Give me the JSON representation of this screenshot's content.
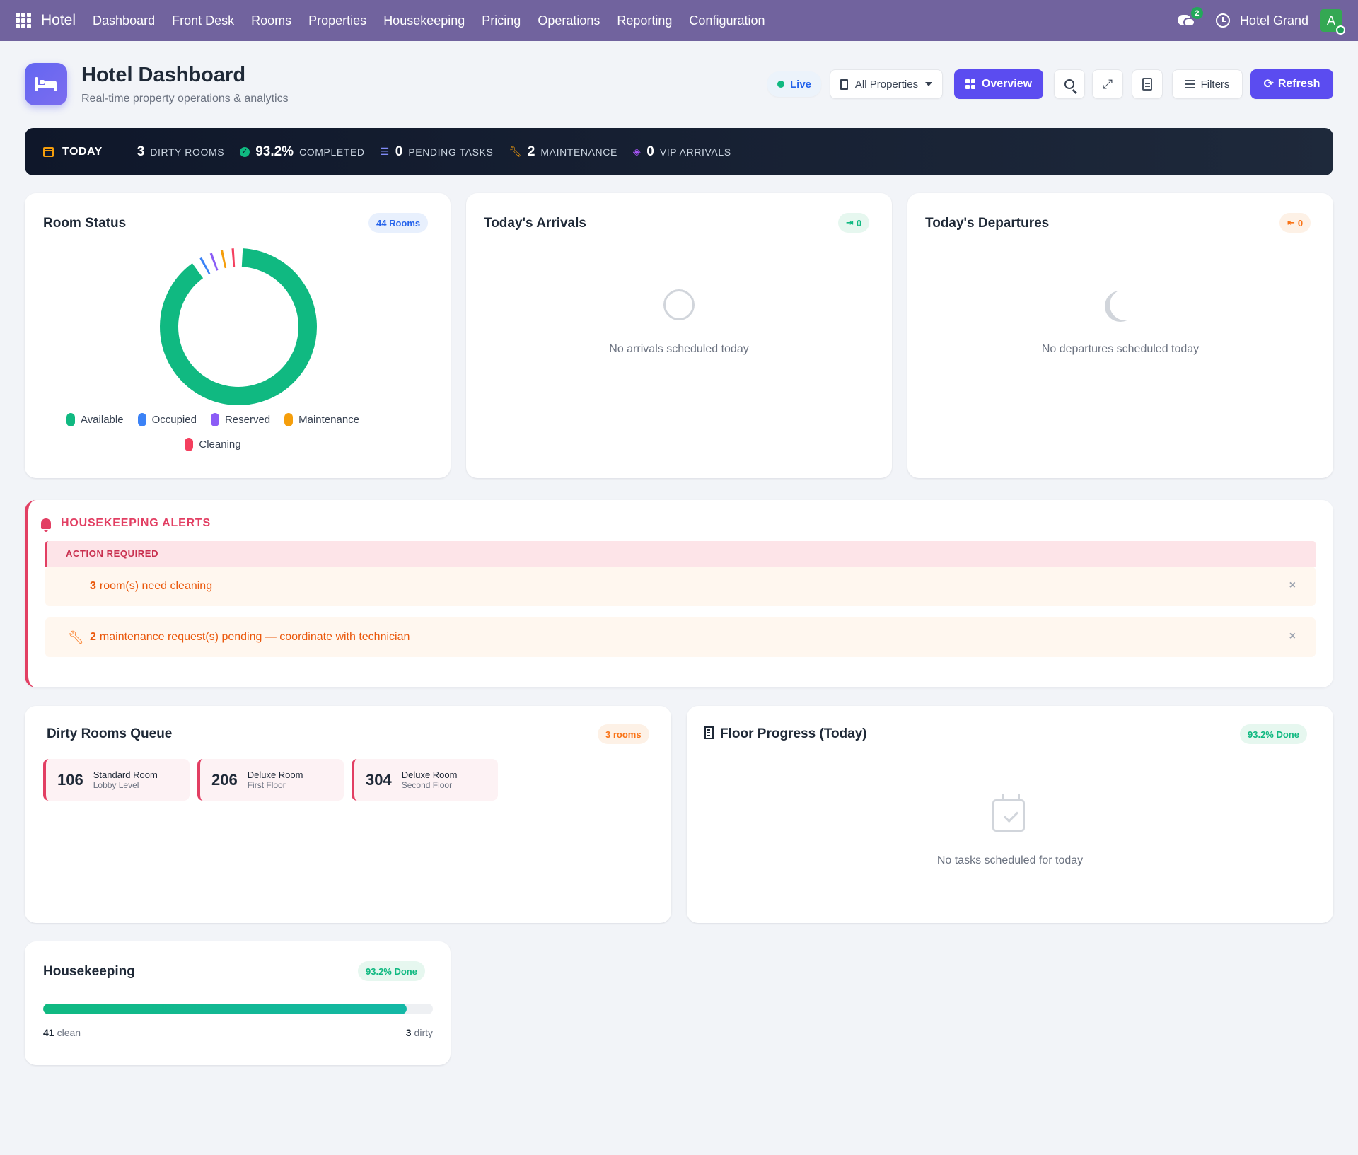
{
  "topnav": {
    "brand": "Hotel",
    "menu": [
      "Dashboard",
      "Front Desk",
      "Rooms",
      "Properties",
      "Housekeeping",
      "Pricing",
      "Operations",
      "Reporting",
      "Configuration"
    ],
    "chat_badge": "2",
    "company": "Hotel Grand",
    "avatar_letter": "A"
  },
  "header": {
    "title": "Hotel Dashboard",
    "subtitle": "Real-time property operations & analytics",
    "live_label": "Live",
    "properties_label": "All Properties",
    "overview_label": "Overview",
    "filters_label": "Filters",
    "refresh_label": "Refresh"
  },
  "strip": {
    "today_label": "TODAY",
    "dirty_rooms": {
      "value": "3",
      "label": "DIRTY ROOMS"
    },
    "completed": {
      "value": "93.2%",
      "label": "COMPLETED"
    },
    "pending_tasks": {
      "value": "0",
      "label": "PENDING TASKS"
    },
    "maintenance": {
      "value": "2",
      "label": "MAINTENANCE"
    },
    "vip_arrivals": {
      "value": "0",
      "label": "VIP ARRIVALS"
    }
  },
  "room_status": {
    "title": "Room Status",
    "badge": "44 Rooms",
    "legend": [
      {
        "label": "Available",
        "color": "#10b981"
      },
      {
        "label": "Occupied",
        "color": "#3b82f6"
      },
      {
        "label": "Reserved",
        "color": "#8b5cf6"
      },
      {
        "label": "Maintenance",
        "color": "#f59e0b"
      },
      {
        "label": "Cleaning",
        "color": "#f43f5e"
      }
    ]
  },
  "chart_data": {
    "type": "pie",
    "categories": [
      "Available",
      "Occupied",
      "Reserved",
      "Maintenance",
      "Cleaning"
    ],
    "values": [
      40,
      1,
      1,
      1,
      1
    ],
    "colors": [
      "#10b981",
      "#3b82f6",
      "#8b5cf6",
      "#f59e0b",
      "#f43f5e"
    ],
    "donut": true
  },
  "arrivals": {
    "title": "Today's Arrivals",
    "badge": "0",
    "empty": "No arrivals scheduled today"
  },
  "departures": {
    "title": "Today's Departures",
    "badge": "0",
    "empty": "No departures scheduled today"
  },
  "alerts": {
    "title": "HOUSEKEEPING ALERTS",
    "action_required": "ACTION REQUIRED",
    "items": [
      {
        "count": "3",
        "text": "room(s) need cleaning"
      },
      {
        "count": "2",
        "text": "maintenance request(s) pending — coordinate with technician"
      }
    ],
    "dismiss": "×"
  },
  "dirty_queue": {
    "title": "Dirty Rooms Queue",
    "badge": "3 rooms",
    "rooms": [
      {
        "number": "106",
        "type": "Standard Room",
        "floor": "Lobby Level"
      },
      {
        "number": "206",
        "type": "Deluxe Room",
        "floor": "First Floor"
      },
      {
        "number": "304",
        "type": "Deluxe Room",
        "floor": "Second Floor"
      }
    ]
  },
  "floor_progress": {
    "title": "Floor Progress (Today)",
    "badge": "93.2% Done",
    "empty": "No tasks scheduled for today"
  },
  "housekeeping": {
    "title": "Housekeeping",
    "badge": "93.2% Done",
    "progress": 0.932,
    "clean_count": "41",
    "clean_label": "clean",
    "dirty_count": "3",
    "dirty_label": "dirty"
  }
}
